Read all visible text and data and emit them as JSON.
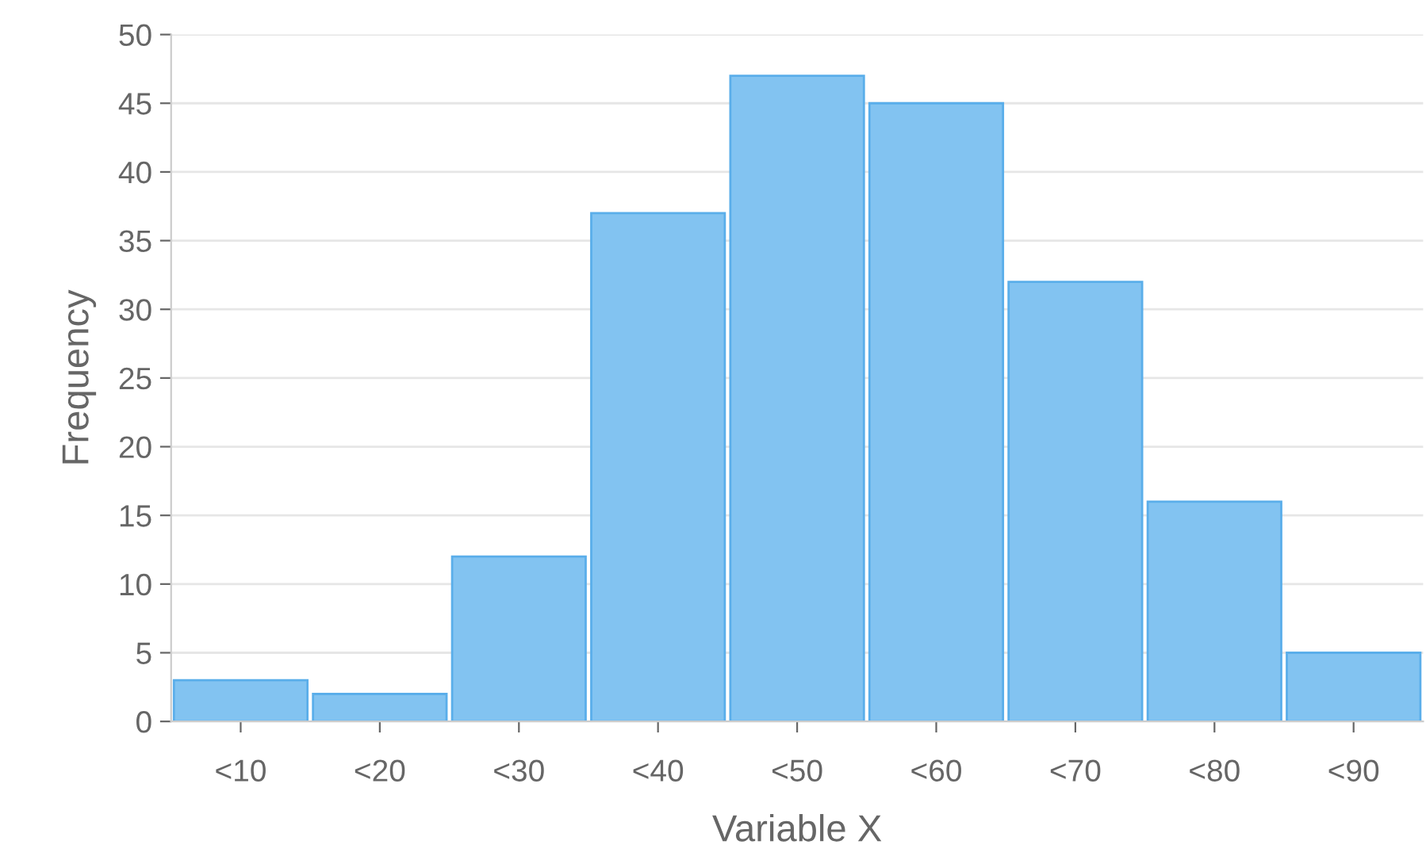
{
  "chart_data": {
    "type": "bar",
    "xlabel": "Variable X",
    "ylabel": "Frequency",
    "categories": [
      "<10",
      "<20",
      "<30",
      "<40",
      "<50",
      "<60",
      "<70",
      "<80",
      "<90"
    ],
    "values": [
      3,
      2,
      12,
      37,
      47,
      45,
      32,
      16,
      5
    ],
    "color": "#82c3f1",
    "ylim": [
      0,
      50
    ],
    "yticks": [
      0,
      5,
      10,
      15,
      20,
      25,
      30,
      35,
      40,
      45,
      50
    ],
    "grid": "y"
  }
}
